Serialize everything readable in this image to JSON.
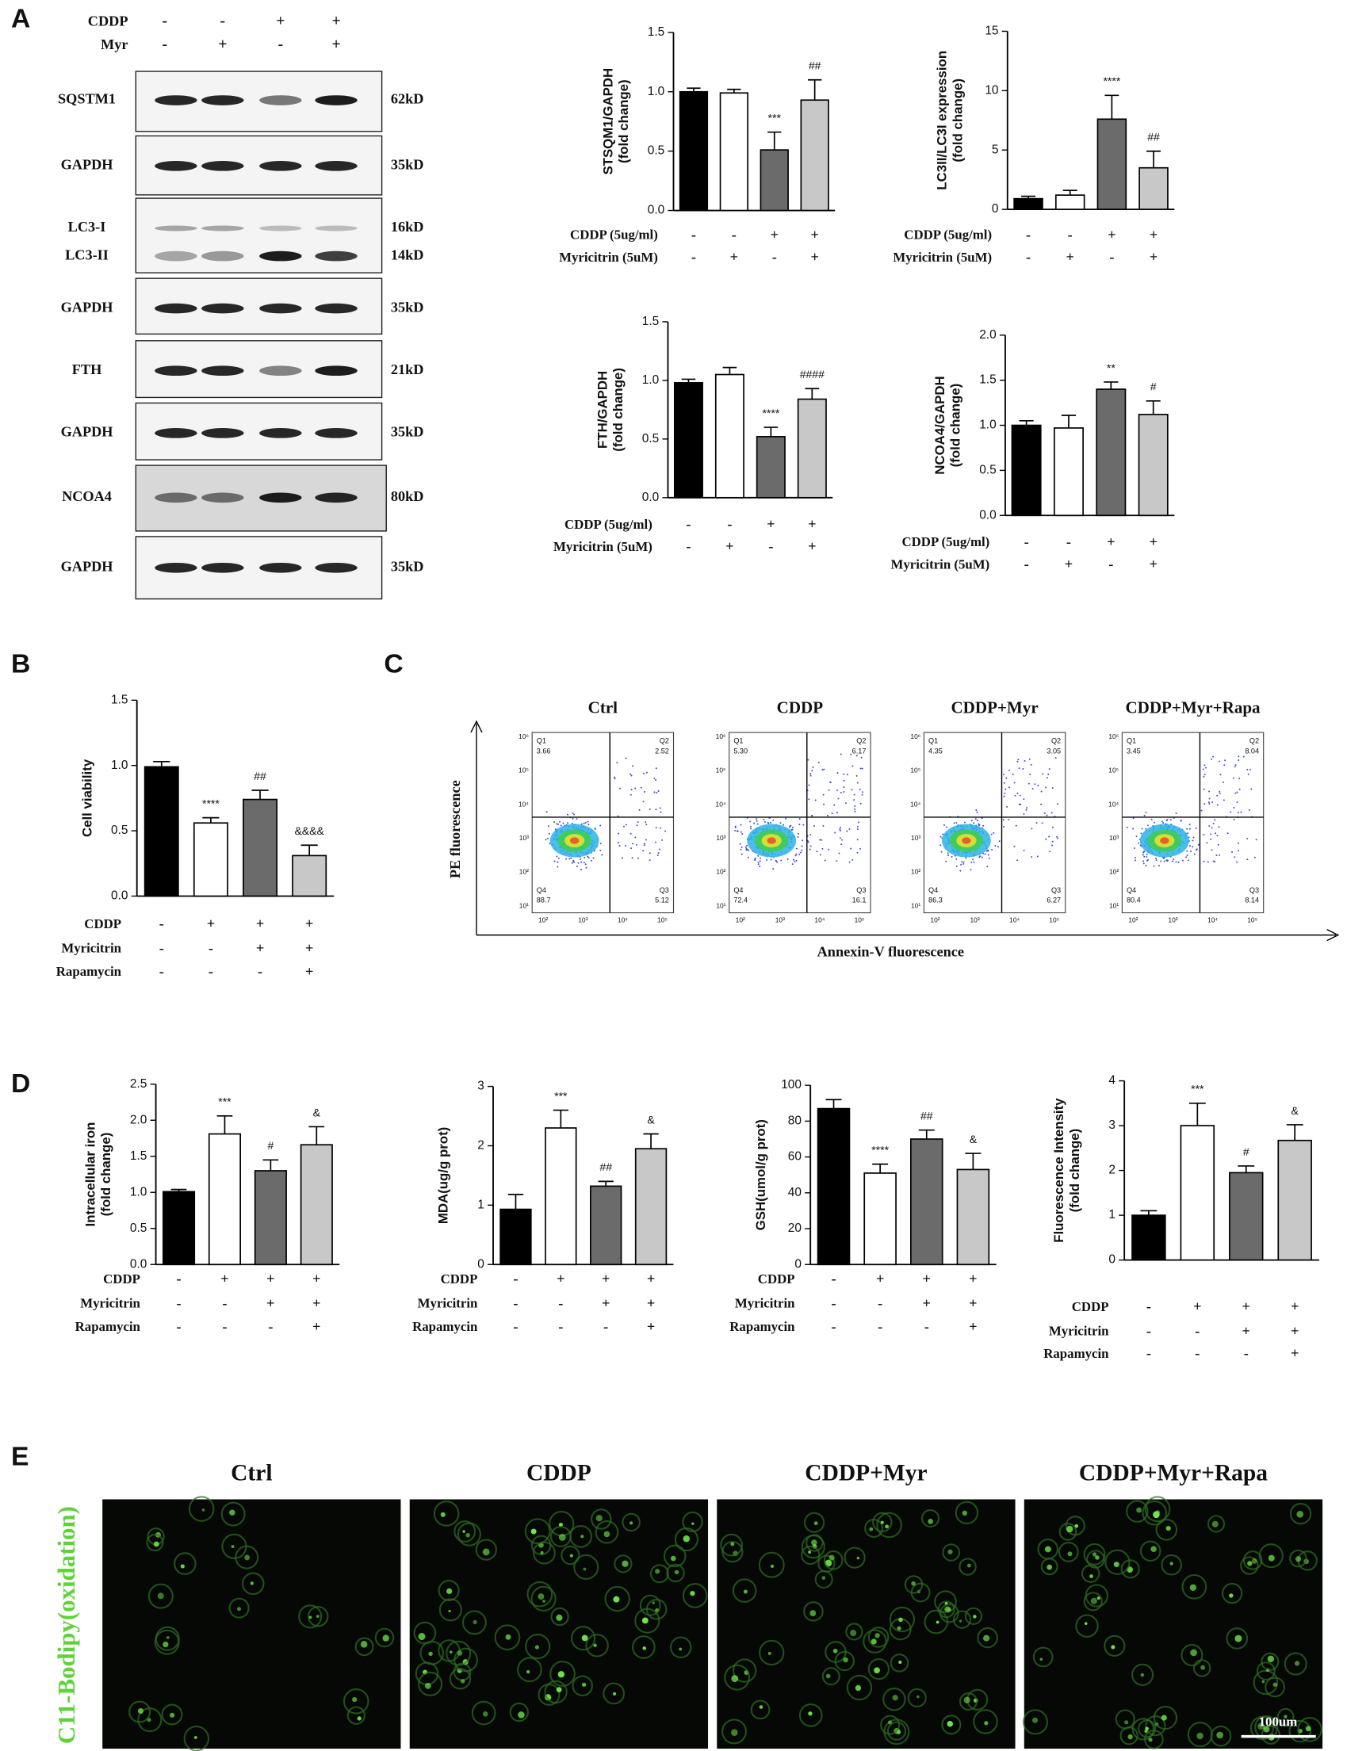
{
  "panel_labels": [
    "A",
    "B",
    "C",
    "D",
    "E"
  ],
  "chart_data": [
    {
      "type": "bar",
      "ylabel": [
        "STSQM1/GAPDH",
        "(fold change)"
      ],
      "values": [
        1.0,
        0.99,
        0.51,
        0.93
      ],
      "errors": [
        0.03,
        0.03,
        0.15,
        0.17
      ],
      "colors": [
        "#000000",
        "#ffffff",
        "#6b6b6b",
        "#c8c8c8"
      ],
      "annotations": [
        null,
        null,
        "***",
        "##"
      ],
      "ylim": [
        0,
        1.5
      ],
      "yticks": [
        {
          "value": 0,
          "label": "0.0"
        },
        0.5,
        {
          "value": 1,
          "label": "1.0"
        },
        1.5
      ],
      "conditions": [
        {
          "name": "CDDP (5ug/ml)",
          "signs": [
            "-",
            "-",
            "+",
            "+"
          ]
        },
        {
          "name": "Myricitrin (5uM)",
          "signs": [
            "-",
            "+",
            "-",
            "+"
          ]
        }
      ]
    },
    {
      "type": "bar",
      "ylabel": [
        "LC3II/LC3I expression",
        "(fold change)"
      ],
      "values": [
        0.9,
        1.2,
        7.6,
        3.5
      ],
      "errors": [
        0.2,
        0.4,
        2.0,
        1.4
      ],
      "colors": [
        "#000000",
        "#ffffff",
        "#6b6b6b",
        "#c8c8c8"
      ],
      "annotations": [
        null,
        null,
        "****",
        "##"
      ],
      "ylim": [
        0,
        15
      ],
      "yticks": [
        0,
        5,
        10,
        15
      ],
      "conditions": [
        {
          "name": "CDDP (5ug/ml)",
          "signs": [
            "-",
            "-",
            "+",
            "+"
          ]
        },
        {
          "name": "Myricitrin (5uM)",
          "signs": [
            "-",
            "+",
            "-",
            "+"
          ]
        }
      ]
    },
    {
      "type": "bar",
      "ylabel": [
        "FTH/GAPDH",
        "(fold change)"
      ],
      "values": [
        0.98,
        1.05,
        0.52,
        0.84
      ],
      "errors": [
        0.03,
        0.06,
        0.08,
        0.09
      ],
      "colors": [
        "#000000",
        "#ffffff",
        "#6b6b6b",
        "#c8c8c8"
      ],
      "annotations": [
        null,
        null,
        "****",
        "####"
      ],
      "ylim": [
        0,
        1.5
      ],
      "yticks": [
        {
          "value": 0,
          "label": "0.0"
        },
        0.5,
        {
          "value": 1,
          "label": "1.0"
        },
        1.5
      ],
      "conditions": [
        {
          "name": "CDDP (5ug/ml)",
          "signs": [
            "-",
            "-",
            "+",
            "+"
          ]
        },
        {
          "name": "Myricitrin (5uM)",
          "signs": [
            "-",
            "+",
            "-",
            "+"
          ]
        }
      ]
    },
    {
      "type": "bar",
      "ylabel": [
        "NCOA4/GAPDH",
        "(fold change)"
      ],
      "values": [
        1.0,
        0.97,
        1.4,
        1.12
      ],
      "errors": [
        0.05,
        0.14,
        0.08,
        0.15
      ],
      "colors": [
        "#000000",
        "#ffffff",
        "#6b6b6b",
        "#c8c8c8"
      ],
      "annotations": [
        null,
        null,
        "**",
        "#"
      ],
      "ylim": [
        0,
        2
      ],
      "yticks": [
        {
          "value": 0,
          "label": "0.0"
        },
        0.5,
        {
          "value": 1,
          "label": "1.0"
        },
        1.5,
        {
          "value": 2,
          "label": "2.0"
        }
      ],
      "conditions": [
        {
          "name": "CDDP (5ug/ml)",
          "signs": [
            "-",
            "-",
            "+",
            "+"
          ]
        },
        {
          "name": "Myricitrin (5uM)",
          "signs": [
            "-",
            "+",
            "-",
            "+"
          ]
        }
      ]
    },
    {
      "type": "bar",
      "ylabel": [
        "Cell viability"
      ],
      "values": [
        0.99,
        0.56,
        0.74,
        0.31
      ],
      "errors": [
        0.04,
        0.04,
        0.07,
        0.08
      ],
      "colors": [
        "#000000",
        "#ffffff",
        "#6b6b6b",
        "#c8c8c8"
      ],
      "annotations": [
        null,
        "****",
        "##",
        "&&&&"
      ],
      "ylim": [
        0,
        1.5
      ],
      "yticks": [
        {
          "value": 0,
          "label": "0.0"
        },
        0.5,
        {
          "value": 1,
          "label": "1.0"
        },
        1.5
      ],
      "conditions": [
        {
          "name": "CDDP",
          "signs": [
            "-",
            "+",
            "+",
            "+"
          ]
        },
        {
          "name": "Myricitrin",
          "signs": [
            "-",
            "-",
            "+",
            "+"
          ]
        },
        {
          "name": "Rapamycin",
          "signs": [
            "-",
            "-",
            "-",
            "+"
          ]
        }
      ]
    },
    {
      "type": "bar",
      "ylabel": [
        "Intracellular iron",
        "(fold change)"
      ],
      "values": [
        1.01,
        1.81,
        1.3,
        1.66
      ],
      "errors": [
        0.03,
        0.25,
        0.15,
        0.25
      ],
      "colors": [
        "#000000",
        "#ffffff",
        "#6b6b6b",
        "#c8c8c8"
      ],
      "annotations": [
        null,
        "***",
        "#",
        "&"
      ],
      "ylim": [
        0,
        2.5
      ],
      "yticks": [
        {
          "value": 0,
          "label": "0.0"
        },
        0.5,
        {
          "value": 1,
          "label": "1.0"
        },
        1.5,
        {
          "value": 2,
          "label": "2.0"
        },
        2.5
      ],
      "conditions": [
        {
          "name": "CDDP",
          "signs": [
            "-",
            "+",
            "+",
            "+"
          ]
        },
        {
          "name": "Myricitrin",
          "signs": [
            "-",
            "-",
            "+",
            "+"
          ]
        },
        {
          "name": "Rapamycin",
          "signs": [
            "-",
            "-",
            "-",
            "+"
          ]
        }
      ]
    },
    {
      "type": "bar",
      "ylabel": [
        "MDA(ug/g prot)"
      ],
      "values": [
        0.93,
        2.3,
        1.32,
        1.95
      ],
      "errors": [
        0.25,
        0.3,
        0.08,
        0.25
      ],
      "colors": [
        "#000000",
        "#ffffff",
        "#6b6b6b",
        "#c8c8c8"
      ],
      "annotations": [
        null,
        "***",
        "##",
        "&"
      ],
      "ylim": [
        0,
        3
      ],
      "yticks": [
        0,
        1,
        2,
        3
      ],
      "conditions": [
        {
          "name": "CDDP",
          "signs": [
            "-",
            "+",
            "+",
            "+"
          ]
        },
        {
          "name": "Myricitrin",
          "signs": [
            "-",
            "-",
            "+",
            "+"
          ]
        },
        {
          "name": "Rapamycin",
          "signs": [
            "-",
            "-",
            "-",
            "+"
          ]
        }
      ]
    },
    {
      "type": "bar",
      "ylabel": [
        "GSH(umol/g prot)"
      ],
      "values": [
        87,
        51,
        70,
        53
      ],
      "errors": [
        5,
        5,
        5,
        9
      ],
      "colors": [
        "#000000",
        "#ffffff",
        "#6b6b6b",
        "#c8c8c8"
      ],
      "annotations": [
        null,
        "****",
        "##",
        "&"
      ],
      "ylim": [
        0,
        100
      ],
      "yticks": [
        0,
        20,
        40,
        60,
        80,
        100
      ],
      "conditions": [
        {
          "name": "CDDP",
          "signs": [
            "-",
            "+",
            "+",
            "+"
          ]
        },
        {
          "name": "Myricitrin",
          "signs": [
            "-",
            "-",
            "+",
            "+"
          ]
        },
        {
          "name": "Rapamycin",
          "signs": [
            "-",
            "-",
            "-",
            "+"
          ]
        }
      ]
    },
    {
      "type": "bar",
      "ylabel": [
        "Fluorescence Intensity",
        "(fold change)"
      ],
      "values": [
        1.0,
        3.0,
        1.95,
        2.67
      ],
      "errors": [
        0.1,
        0.5,
        0.15,
        0.35
      ],
      "colors": [
        "#000000",
        "#ffffff",
        "#6b6b6b",
        "#c8c8c8"
      ],
      "annotations": [
        null,
        "***",
        "#",
        "&"
      ],
      "ylim": [
        0,
        4
      ],
      "yticks": [
        0,
        1,
        2,
        3,
        4
      ],
      "conditions": [
        {
          "name": "CDDP",
          "signs": [
            "-",
            "+",
            "+",
            "+"
          ]
        },
        {
          "name": "Myricitrin",
          "signs": [
            "-",
            "-",
            "+",
            "+"
          ]
        },
        {
          "name": "Rapamycin",
          "signs": [
            "-",
            "-",
            "-",
            "+"
          ]
        }
      ]
    }
  ],
  "western_blot": {
    "treatments": [
      {
        "name": "CDDP",
        "signs": [
          "-",
          "-",
          "+",
          "+"
        ]
      },
      {
        "name": "Myr",
        "signs": [
          "-",
          "+",
          "-",
          "+"
        ]
      }
    ],
    "blots": [
      {
        "labels": [
          "SQSTM1"
        ],
        "sizes": [
          "62kD"
        ]
      },
      {
        "labels": [
          "GAPDH"
        ],
        "sizes": [
          "35kD"
        ]
      },
      {
        "labels": [
          "LC3-I",
          "LC3-II"
        ],
        "sizes": [
          "16kD",
          "14kD"
        ]
      },
      {
        "labels": [
          "GAPDH"
        ],
        "sizes": [
          "35kD"
        ]
      },
      {
        "labels": [
          "FTH"
        ],
        "sizes": [
          "21kD"
        ]
      },
      {
        "labels": [
          "GAPDH"
        ],
        "sizes": [
          "35kD"
        ]
      },
      {
        "labels": [
          "NCOA4"
        ],
        "sizes": [
          "80kD"
        ]
      },
      {
        "labels": [
          "GAPDH"
        ],
        "sizes": [
          "35kD"
        ]
      }
    ]
  },
  "flow_cytometry": {
    "y_label": "PE fluorescence",
    "x_label": "Annexin-V fluorescence",
    "y_ticks": [
      "10⁶",
      "10⁵",
      "10⁴",
      "10³",
      "10²",
      "10¹"
    ],
    "x_ticks": [
      "10²",
      "10³",
      "10⁴",
      "10⁵"
    ],
    "plots": [
      {
        "title": "Ctrl",
        "quadrants": [
          {
            "name": "Q1",
            "value": "3.66"
          },
          {
            "name": "Q2",
            "value": "2.52"
          },
          {
            "name": "Q3",
            "value": "5.12"
          },
          {
            "name": "Q4",
            "value": "88.7"
          }
        ]
      },
      {
        "title": "CDDP",
        "quadrants": [
          {
            "name": "Q1",
            "value": "5.30"
          },
          {
            "name": "Q2",
            "value": "6.17"
          },
          {
            "name": "Q3",
            "value": "16.1"
          },
          {
            "name": "Q4",
            "value": "72.4"
          }
        ]
      },
      {
        "title": "CDDP+Myr",
        "quadrants": [
          {
            "name": "Q1",
            "value": "4.35"
          },
          {
            "name": "Q2",
            "value": "3.05"
          },
          {
            "name": "Q3",
            "value": "6.27"
          },
          {
            "name": "Q4",
            "value": "86.3"
          }
        ]
      },
      {
        "title": "CDDP+Myr+Rapa",
        "quadrants": [
          {
            "name": "Q1",
            "value": "3.45"
          },
          {
            "name": "Q2",
            "value": "8.04"
          },
          {
            "name": "Q3",
            "value": "8.14"
          },
          {
            "name": "Q4",
            "value": "80.4"
          }
        ]
      }
    ]
  },
  "fluorescence_images": {
    "stain_label": "C11-Bodipy(oxidation)",
    "scale_bar": "100um",
    "titles": [
      "Ctrl",
      "CDDP",
      "CDDP+Myr",
      "CDDP+Myr+Rapa"
    ]
  }
}
